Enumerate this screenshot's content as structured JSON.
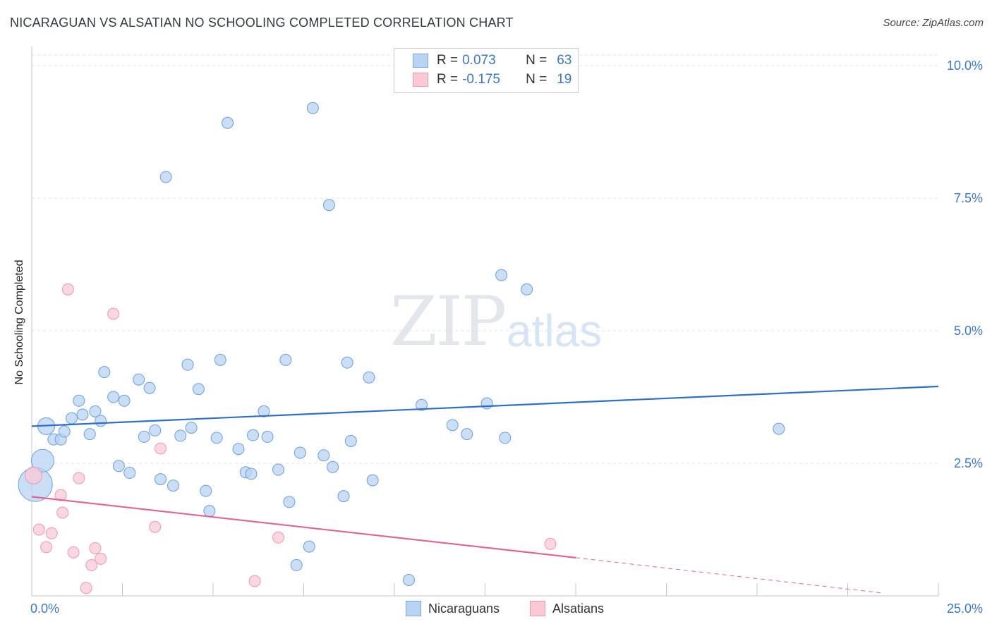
{
  "header": {
    "title": "NICARAGUAN VS ALSATIAN NO SCHOOLING COMPLETED CORRELATION CHART",
    "source": "Source: ZipAtlas.com"
  },
  "watermark": {
    "zip": "ZIP",
    "atlas": "atlas"
  },
  "legend": {
    "rows": [
      {
        "r_label": "R =",
        "r_value": "0.073",
        "n_label": "N =",
        "n_value": "63",
        "color": "#b8d3f3",
        "border": "#7aa7e0"
      },
      {
        "r_label": "R =",
        "r_value": "-0.175",
        "n_label": "N =",
        "n_value": "19",
        "color": "#fbc8d6",
        "border": "#e79ab2"
      }
    ]
  },
  "bottom_legend": {
    "items": [
      {
        "label": "Nicaraguans",
        "color": "#b8d3f3",
        "border": "#7aa7e0"
      },
      {
        "label": "Alsatians",
        "color": "#fbc8d6",
        "border": "#e79ab2"
      }
    ]
  },
  "chart_data": {
    "type": "scatter",
    "title": "NICARAGUAN VS ALSATIAN NO SCHOOLING COMPLETED CORRELATION CHART",
    "xlabel": "",
    "ylabel": "No Schooling Completed",
    "xlim": [
      0,
      25
    ],
    "ylim": [
      0,
      10.2
    ],
    "x_tick_labels": [
      "0.0%",
      "25.0%"
    ],
    "y_ticks": [
      2.5,
      5.0,
      7.5,
      10.0
    ],
    "y_tick_labels": [
      "2.5%",
      "5.0%",
      "7.5%",
      "10.0%"
    ],
    "series": [
      {
        "name": "Nicaraguans",
        "color": "#b8d3f3",
        "stroke": "#6c9edc",
        "line_color": "#2f6fcc",
        "trend": {
          "x": [
            0,
            25
          ],
          "y": [
            3.2,
            3.95
          ]
        },
        "points": [
          {
            "x": 0.1,
            "y": 2.1,
            "s": 3
          },
          {
            "x": 0.3,
            "y": 2.55,
            "s": 2
          },
          {
            "x": 0.4,
            "y": 3.2,
            "s": 1.5
          },
          {
            "x": 0.6,
            "y": 2.95,
            "s": 1
          },
          {
            "x": 0.8,
            "y": 2.95,
            "s": 1
          },
          {
            "x": 0.9,
            "y": 3.1,
            "s": 1
          },
          {
            "x": 1.1,
            "y": 3.35,
            "s": 1
          },
          {
            "x": 1.3,
            "y": 3.68,
            "s": 1
          },
          {
            "x": 1.4,
            "y": 3.42,
            "s": 1
          },
          {
            "x": 1.6,
            "y": 3.05,
            "s": 1
          },
          {
            "x": 1.75,
            "y": 3.48,
            "s": 1
          },
          {
            "x": 1.9,
            "y": 3.3,
            "s": 1
          },
          {
            "x": 2.0,
            "y": 4.22,
            "s": 1
          },
          {
            "x": 2.25,
            "y": 3.75,
            "s": 1
          },
          {
            "x": 2.4,
            "y": 2.45,
            "s": 1
          },
          {
            "x": 2.55,
            "y": 3.68,
            "s": 1
          },
          {
            "x": 2.7,
            "y": 2.32,
            "s": 1
          },
          {
            "x": 2.95,
            "y": 4.08,
            "s": 1
          },
          {
            "x": 3.1,
            "y": 3.0,
            "s": 1
          },
          {
            "x": 3.25,
            "y": 3.92,
            "s": 1
          },
          {
            "x": 3.4,
            "y": 3.12,
            "s": 1
          },
          {
            "x": 3.55,
            "y": 2.2,
            "s": 1
          },
          {
            "x": 3.9,
            "y": 2.08,
            "s": 1
          },
          {
            "x": 3.7,
            "y": 7.9,
            "s": 1
          },
          {
            "x": 4.1,
            "y": 3.02,
            "s": 1
          },
          {
            "x": 4.3,
            "y": 4.36,
            "s": 1
          },
          {
            "x": 4.4,
            "y": 3.17,
            "s": 1
          },
          {
            "x": 4.6,
            "y": 3.9,
            "s": 1
          },
          {
            "x": 4.8,
            "y": 1.98,
            "s": 1
          },
          {
            "x": 4.9,
            "y": 1.6,
            "s": 1
          },
          {
            "x": 5.1,
            "y": 2.98,
            "s": 1
          },
          {
            "x": 5.2,
            "y": 4.45,
            "s": 1
          },
          {
            "x": 5.4,
            "y": 8.92,
            "s": 1
          },
          {
            "x": 5.7,
            "y": 2.77,
            "s": 1
          },
          {
            "x": 5.9,
            "y": 2.33,
            "s": 1
          },
          {
            "x": 6.05,
            "y": 2.3,
            "s": 1
          },
          {
            "x": 6.1,
            "y": 3.03,
            "s": 1
          },
          {
            "x": 6.4,
            "y": 3.48,
            "s": 1
          },
          {
            "x": 6.5,
            "y": 3.0,
            "s": 1
          },
          {
            "x": 6.8,
            "y": 2.38,
            "s": 1
          },
          {
            "x": 7.0,
            "y": 4.45,
            "s": 1
          },
          {
            "x": 7.1,
            "y": 1.77,
            "s": 1
          },
          {
            "x": 7.3,
            "y": 0.58,
            "s": 1
          },
          {
            "x": 7.4,
            "y": 2.7,
            "s": 1
          },
          {
            "x": 7.65,
            "y": 0.93,
            "s": 1
          },
          {
            "x": 7.75,
            "y": 9.2,
            "s": 1
          },
          {
            "x": 8.05,
            "y": 2.65,
            "s": 1
          },
          {
            "x": 8.2,
            "y": 7.37,
            "s": 1
          },
          {
            "x": 8.3,
            "y": 2.43,
            "s": 1
          },
          {
            "x": 8.6,
            "y": 1.88,
            "s": 1
          },
          {
            "x": 8.7,
            "y": 4.4,
            "s": 1
          },
          {
            "x": 8.8,
            "y": 2.92,
            "s": 1
          },
          {
            "x": 9.3,
            "y": 4.12,
            "s": 1
          },
          {
            "x": 9.4,
            "y": 2.18,
            "s": 1
          },
          {
            "x": 10.4,
            "y": 0.3,
            "s": 1
          },
          {
            "x": 10.75,
            "y": 3.6,
            "s": 1
          },
          {
            "x": 11.6,
            "y": 3.22,
            "s": 1
          },
          {
            "x": 12.0,
            "y": 3.05,
            "s": 1
          },
          {
            "x": 12.55,
            "y": 3.63,
            "s": 1
          },
          {
            "x": 12.95,
            "y": 6.05,
            "s": 1
          },
          {
            "x": 13.05,
            "y": 2.98,
            "s": 1
          },
          {
            "x": 13.65,
            "y": 5.78,
            "s": 1
          },
          {
            "x": 20.6,
            "y": 3.15,
            "s": 1
          }
        ]
      },
      {
        "name": "Alsatians",
        "color": "#fbc8d6",
        "stroke": "#e79ab2",
        "line_color": "#e0668e",
        "trend": {
          "x": [
            0,
            15
          ],
          "y": [
            1.87,
            0.72
          ]
        },
        "trend_dashed": {
          "x": [
            15,
            23.5
          ],
          "y": [
            0.72,
            0.05
          ]
        },
        "points": [
          {
            "x": 0.05,
            "y": 2.27,
            "s": 1.5
          },
          {
            "x": 0.2,
            "y": 1.25,
            "s": 1
          },
          {
            "x": 0.4,
            "y": 0.92,
            "s": 1
          },
          {
            "x": 0.55,
            "y": 1.18,
            "s": 1
          },
          {
            "x": 0.8,
            "y": 1.9,
            "s": 1
          },
          {
            "x": 0.85,
            "y": 1.57,
            "s": 1
          },
          {
            "x": 1.0,
            "y": 5.78,
            "s": 1
          },
          {
            "x": 1.15,
            "y": 0.82,
            "s": 1
          },
          {
            "x": 1.3,
            "y": 2.22,
            "s": 1
          },
          {
            "x": 1.5,
            "y": 0.15,
            "s": 1
          },
          {
            "x": 1.65,
            "y": 0.58,
            "s": 1
          },
          {
            "x": 1.75,
            "y": 0.9,
            "s": 1
          },
          {
            "x": 1.9,
            "y": 0.7,
            "s": 1
          },
          {
            "x": 2.25,
            "y": 5.32,
            "s": 1
          },
          {
            "x": 3.4,
            "y": 1.3,
            "s": 1
          },
          {
            "x": 3.55,
            "y": 2.78,
            "s": 1
          },
          {
            "x": 6.15,
            "y": 0.28,
            "s": 1
          },
          {
            "x": 6.8,
            "y": 1.1,
            "s": 1
          },
          {
            "x": 14.3,
            "y": 0.98,
            "s": 1
          }
        ]
      }
    ]
  }
}
